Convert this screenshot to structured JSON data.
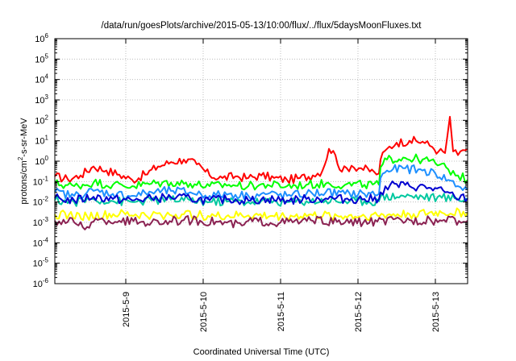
{
  "chart_data": {
    "type": "line",
    "title": "/data/run/goesPlots/archive/2015-05-13/10:00/flux/../flux/5daysMoonFluxes.txt",
    "xlabel": "Coordinated Universal Time (UTC)",
    "ylabel": "protons/cm2-s-sr-MeV",
    "ylabel_parts": {
      "before": "protons/cm",
      "sup": "2",
      "after": "-s-sr-MeV"
    },
    "xscale": "time",
    "xlim": [
      "2015-05-08 02:00",
      "2015-05-13 10:00"
    ],
    "yscale": "log",
    "ylim": [
      1e-06,
      1000000.0
    ],
    "grid": true,
    "x_ticks": [
      {
        "t": "2015-05-09",
        "label": "2015-5-9"
      },
      {
        "t": "2015-05-10",
        "label": "2015-5-10"
      },
      {
        "t": "2015-05-11",
        "label": "2015-5-11"
      },
      {
        "t": "2015-05-12",
        "label": "2015-5-12"
      },
      {
        "t": "2015-05-13",
        "label": "2015-5-13"
      }
    ],
    "y_ticks": [
      {
        "v": 1e-06,
        "base": "10",
        "exp": "-6"
      },
      {
        "v": 1e-05,
        "base": "10",
        "exp": "-5"
      },
      {
        "v": 0.0001,
        "base": "10",
        "exp": "-4"
      },
      {
        "v": 0.001,
        "base": "10",
        "exp": "-3"
      },
      {
        "v": 0.01,
        "base": "10",
        "exp": "-2"
      },
      {
        "v": 0.1,
        "base": "10",
        "exp": "-1"
      },
      {
        "v": 1,
        "base": "10",
        "exp": "0"
      },
      {
        "v": 10,
        "base": "10",
        "exp": "1"
      },
      {
        "v": 100,
        "base": "10",
        "exp": "2"
      },
      {
        "v": 1000,
        "base": "10",
        "exp": "3"
      },
      {
        "v": 10000,
        "base": "10",
        "exp": "4"
      },
      {
        "v": 100000,
        "base": "10",
        "exp": "5"
      },
      {
        "v": 1000000,
        "base": "10",
        "exp": "6"
      }
    ],
    "series": [
      {
        "color": "#ff0000",
        "points": [
          [
            "2015-05-08 02:00",
            0.18
          ],
          [
            "2015-05-08 06:00",
            0.13
          ],
          [
            "2015-05-08 10:00",
            0.2
          ],
          [
            "2015-05-08 14:00",
            0.55
          ],
          [
            "2015-05-08 18:00",
            0.35
          ],
          [
            "2015-05-08 22:00",
            0.22
          ],
          [
            "2015-05-09 02:00",
            0.12
          ],
          [
            "2015-05-09 06:00",
            0.22
          ],
          [
            "2015-05-09 10:00",
            0.55
          ],
          [
            "2015-05-09 14:00",
            0.9
          ],
          [
            "2015-05-09 18:00",
            1.2
          ],
          [
            "2015-05-09 22:00",
            0.7
          ],
          [
            "2015-05-10 02:00",
            0.2
          ],
          [
            "2015-05-10 06:00",
            0.15
          ],
          [
            "2015-05-10 10:00",
            0.18
          ],
          [
            "2015-05-10 14:00",
            0.15
          ],
          [
            "2015-05-10 18:00",
            0.2
          ],
          [
            "2015-05-10 22:00",
            0.15
          ],
          [
            "2015-05-11 02:00",
            0.12
          ],
          [
            "2015-05-11 06:00",
            0.15
          ],
          [
            "2015-05-11 10:00",
            0.2
          ],
          [
            "2015-05-11 13:00",
            0.35
          ],
          [
            "2015-05-11 15:00",
            4.0
          ],
          [
            "2015-05-11 17:00",
            2.0
          ],
          [
            "2015-05-11 19:00",
            0.3
          ],
          [
            "2015-05-11 22:00",
            0.6
          ],
          [
            "2015-05-12 01:00",
            0.45
          ],
          [
            "2015-05-12 05:00",
            0.3
          ],
          [
            "2015-05-12 06:30",
            0.25
          ],
          [
            "2015-05-12 07:00",
            1.2
          ],
          [
            "2015-05-12 09:00",
            4.0
          ],
          [
            "2015-05-12 12:00",
            8.0
          ],
          [
            "2015-05-12 16:00",
            10.0
          ],
          [
            "2015-05-12 20:00",
            9.0
          ],
          [
            "2015-05-12 23:00",
            5.0
          ],
          [
            "2015-05-13 01:00",
            3.0
          ],
          [
            "2015-05-13 03:00",
            2.5
          ],
          [
            "2015-05-13 04:30",
            150.0
          ],
          [
            "2015-05-13 05:30",
            3.0
          ],
          [
            "2015-05-13 07:00",
            2.0
          ],
          [
            "2015-05-13 08:30",
            3.5
          ],
          [
            "2015-05-13 10:00",
            4.0
          ]
        ]
      },
      {
        "color": "#00ff00",
        "points": [
          [
            "2015-05-08 02:00",
            0.08
          ],
          [
            "2015-05-08 08:00",
            0.06
          ],
          [
            "2015-05-08 14:00",
            0.09
          ],
          [
            "2015-05-08 20:00",
            0.07
          ],
          [
            "2015-05-09 02:00",
            0.06
          ],
          [
            "2015-05-09 08:00",
            0.08
          ],
          [
            "2015-05-09 14:00",
            0.09
          ],
          [
            "2015-05-09 20:00",
            0.08
          ],
          [
            "2015-05-10 02:00",
            0.06
          ],
          [
            "2015-05-10 08:00",
            0.07
          ],
          [
            "2015-05-10 14:00",
            0.06
          ],
          [
            "2015-05-10 20:00",
            0.07
          ],
          [
            "2015-05-11 02:00",
            0.06
          ],
          [
            "2015-05-11 08:00",
            0.07
          ],
          [
            "2015-05-11 14:00",
            0.08
          ],
          [
            "2015-05-11 20:00",
            0.07
          ],
          [
            "2015-05-12 02:00",
            0.07
          ],
          [
            "2015-05-12 06:30",
            0.07
          ],
          [
            "2015-05-12 07:00",
            0.5
          ],
          [
            "2015-05-12 09:00",
            1.2
          ],
          [
            "2015-05-12 14:00",
            1.5
          ],
          [
            "2015-05-12 20:00",
            1.2
          ],
          [
            "2015-05-13 00:00",
            0.8
          ],
          [
            "2015-05-13 04:00",
            0.4
          ],
          [
            "2015-05-13 07:00",
            0.2
          ],
          [
            "2015-05-13 10:00",
            0.12
          ]
        ]
      },
      {
        "color": "#1e90ff",
        "points": [
          [
            "2015-05-08 02:00",
            0.03
          ],
          [
            "2015-05-08 08:00",
            0.02
          ],
          [
            "2015-05-08 14:00",
            0.035
          ],
          [
            "2015-05-08 20:00",
            0.025
          ],
          [
            "2015-05-09 02:00",
            0.02
          ],
          [
            "2015-05-09 08:00",
            0.03
          ],
          [
            "2015-05-09 14:00",
            0.035
          ],
          [
            "2015-05-09 20:00",
            0.03
          ],
          [
            "2015-05-10 02:00",
            0.02
          ],
          [
            "2015-05-10 08:00",
            0.025
          ],
          [
            "2015-05-10 14:00",
            0.02
          ],
          [
            "2015-05-10 20:00",
            0.025
          ],
          [
            "2015-05-11 02:00",
            0.02
          ],
          [
            "2015-05-11 08:00",
            0.025
          ],
          [
            "2015-05-11 14:00",
            0.03
          ],
          [
            "2015-05-11 20:00",
            0.025
          ],
          [
            "2015-05-12 02:00",
            0.025
          ],
          [
            "2015-05-12 06:30",
            0.025
          ],
          [
            "2015-05-12 07:00",
            0.15
          ],
          [
            "2015-05-12 09:00",
            0.35
          ],
          [
            "2015-05-12 14:00",
            0.45
          ],
          [
            "2015-05-12 20:00",
            0.35
          ],
          [
            "2015-05-13 00:00",
            0.25
          ],
          [
            "2015-05-13 04:00",
            0.12
          ],
          [
            "2015-05-13 07:00",
            0.06
          ],
          [
            "2015-05-13 10:00",
            0.04
          ]
        ]
      },
      {
        "color": "#00c8a0",
        "points": [
          [
            "2015-05-08 02:00",
            0.012
          ],
          [
            "2015-05-08 08:00",
            0.01
          ],
          [
            "2015-05-08 14:00",
            0.014
          ],
          [
            "2015-05-08 20:00",
            0.011
          ],
          [
            "2015-05-09 02:00",
            0.01
          ],
          [
            "2015-05-09 08:00",
            0.012
          ],
          [
            "2015-05-09 14:00",
            0.013
          ],
          [
            "2015-05-09 20:00",
            0.012
          ],
          [
            "2015-05-10 02:00",
            0.01
          ],
          [
            "2015-05-10 08:00",
            0.011
          ],
          [
            "2015-05-10 14:00",
            0.01
          ],
          [
            "2015-05-10 20:00",
            0.011
          ],
          [
            "2015-05-11 02:00",
            0.01
          ],
          [
            "2015-05-11 08:00",
            0.011
          ],
          [
            "2015-05-11 14:00",
            0.012
          ],
          [
            "2015-05-11 20:00",
            0.011
          ],
          [
            "2015-05-12 02:00",
            0.011
          ],
          [
            "2015-05-12 06:30",
            0.011
          ],
          [
            "2015-05-12 07:00",
            0.018
          ],
          [
            "2015-05-12 14:00",
            0.02
          ],
          [
            "2015-05-12 20:00",
            0.018
          ],
          [
            "2015-05-13 02:00",
            0.016
          ],
          [
            "2015-05-13 06:00",
            0.015
          ],
          [
            "2015-05-13 10:00",
            0.014
          ]
        ]
      },
      {
        "color": "#0000d0",
        "points": [
          [
            "2015-05-08 02:00",
            0.015
          ],
          [
            "2015-05-08 08:00",
            0.012
          ],
          [
            "2015-05-08 14:00",
            0.018
          ],
          [
            "2015-05-08 20:00",
            0.014
          ],
          [
            "2015-05-09 02:00",
            0.012
          ],
          [
            "2015-05-09 08:00",
            0.015
          ],
          [
            "2015-05-09 14:00",
            0.017
          ],
          [
            "2015-05-09 20:00",
            0.015
          ],
          [
            "2015-05-10 02:00",
            0.012
          ],
          [
            "2015-05-10 08:00",
            0.014
          ],
          [
            "2015-05-10 14:00",
            0.012
          ],
          [
            "2015-05-10 20:00",
            0.014
          ],
          [
            "2015-05-11 02:00",
            0.012
          ],
          [
            "2015-05-11 08:00",
            0.014
          ],
          [
            "2015-05-11 14:00",
            0.015
          ],
          [
            "2015-05-11 20:00",
            0.014
          ],
          [
            "2015-05-12 02:00",
            0.014
          ],
          [
            "2015-05-12 06:30",
            0.014
          ],
          [
            "2015-05-12 07:00",
            0.03
          ],
          [
            "2015-05-12 10:00",
            0.07
          ],
          [
            "2015-05-12 16:00",
            0.06
          ],
          [
            "2015-05-12 22:00",
            0.05
          ],
          [
            "2015-05-13 03:00",
            0.03
          ],
          [
            "2015-05-13 06:00",
            0.018
          ],
          [
            "2015-05-13 10:00",
            0.015
          ]
        ]
      },
      {
        "color": "#ffff00",
        "points": [
          [
            "2015-05-08 02:00",
            0.0025
          ],
          [
            "2015-05-08 12:00",
            0.002
          ],
          [
            "2015-05-08 22:00",
            0.0025
          ],
          [
            "2015-05-09 08:00",
            0.0022
          ],
          [
            "2015-05-09 18:00",
            0.0025
          ],
          [
            "2015-05-10 04:00",
            0.002
          ],
          [
            "2015-05-10 14:00",
            0.0022
          ],
          [
            "2015-05-11 00:00",
            0.002
          ],
          [
            "2015-05-11 10:00",
            0.0022
          ],
          [
            "2015-05-11 20:00",
            0.002
          ],
          [
            "2015-05-12 06:00",
            0.0022
          ],
          [
            "2015-05-12 16:00",
            0.0025
          ],
          [
            "2015-05-13 02:00",
            0.003
          ],
          [
            "2015-05-13 10:00",
            0.003
          ]
        ]
      },
      {
        "color": "#8b2252",
        "points": [
          [
            "2015-05-08 02:00",
            0.0012
          ],
          [
            "2015-05-08 08:00",
            0.001
          ],
          [
            "2015-05-08 12:00",
            0.0006
          ],
          [
            "2015-05-08 14:00",
            0.0011
          ],
          [
            "2015-05-08 22:00",
            0.0012
          ],
          [
            "2015-05-09 08:00",
            0.001
          ],
          [
            "2015-05-09 18:00",
            0.0013
          ],
          [
            "2015-05-10 04:00",
            0.0011
          ],
          [
            "2015-05-10 12:00",
            0.0007
          ],
          [
            "2015-05-10 14:00",
            0.0012
          ],
          [
            "2015-05-11 00:00",
            0.001
          ],
          [
            "2015-05-11 10:00",
            0.0012
          ],
          [
            "2015-05-11 20:00",
            0.001
          ],
          [
            "2015-05-12 06:00",
            0.0011
          ],
          [
            "2015-05-12 16:00",
            0.0013
          ],
          [
            "2015-05-13 02:00",
            0.0012
          ],
          [
            "2015-05-13 10:00",
            0.0012
          ]
        ]
      }
    ]
  }
}
